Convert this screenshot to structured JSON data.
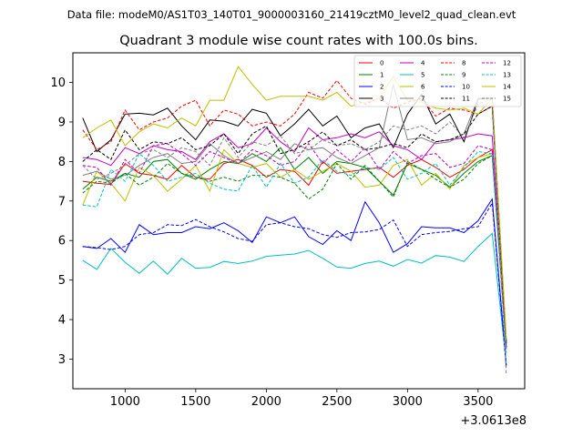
{
  "chart_data": {
    "type": "line",
    "header": "Data file: modeM0/AS1T03_140T01_9000003160_21419cztM0_level2_quad_clean.evt",
    "title": "Quadrant 3 module wise count rates with 100.0s bins.",
    "xlabel": "",
    "ylabel": "",
    "x_offset_label": "+3.0613e8",
    "xlim": [
      630,
      3830
    ],
    "ylim": [
      2.25,
      10.75
    ],
    "xticks": [
      1000,
      1500,
      2000,
      2500,
      3000,
      3500
    ],
    "yticks": [
      3,
      4,
      5,
      6,
      7,
      8,
      9,
      10
    ],
    "grid": false,
    "legend_placement": "top-right",
    "x": [
      700,
      800,
      900,
      1000,
      1100,
      1200,
      1300,
      1400,
      1500,
      1600,
      1700,
      1800,
      1900,
      2000,
      2100,
      2200,
      2300,
      2400,
      2500,
      2600,
      2700,
      2800,
      2900,
      3000,
      3100,
      3200,
      3300,
      3400,
      3500,
      3600,
      3700
    ],
    "series": [
      {
        "name": "0",
        "color": "#ff0000",
        "dash": false,
        "values": [
          7.5,
          7.45,
          7.42,
          7.95,
          7.7,
          7.65,
          7.55,
          7.9,
          7.6,
          7.55,
          7.95,
          8.05,
          7.9,
          7.6,
          7.8,
          7.75,
          7.4,
          8.0,
          7.7,
          7.75,
          7.8,
          7.85,
          7.6,
          7.9,
          8.05,
          7.85,
          7.6,
          7.8,
          8.1,
          8.3,
          3.3
        ]
      },
      {
        "name": "1",
        "color": "#008000",
        "dash": false,
        "values": [
          7.3,
          7.6,
          7.5,
          7.7,
          7.6,
          8.0,
          8.05,
          7.7,
          7.55,
          7.8,
          8.0,
          7.95,
          8.2,
          8.0,
          8.35,
          7.8,
          8.1,
          7.7,
          8.0,
          7.95,
          7.85,
          7.5,
          7.15,
          7.95,
          7.8,
          7.65,
          7.35,
          7.7,
          8.0,
          8.15,
          3.4
        ]
      },
      {
        "name": "2",
        "color": "#0000ff",
        "dash": false,
        "values": [
          5.85,
          5.8,
          6.05,
          5.7,
          6.4,
          6.15,
          6.2,
          6.2,
          6.35,
          6.3,
          6.45,
          6.25,
          5.95,
          6.6,
          6.45,
          6.6,
          6.1,
          5.9,
          6.25,
          6.0,
          6.98,
          6.45,
          5.7,
          5.92,
          6.35,
          6.32,
          6.32,
          6.2,
          6.5,
          7.05,
          2.85
        ]
      },
      {
        "name": "3",
        "color": "#000000",
        "dash": false,
        "values": [
          9.1,
          8.25,
          8.55,
          9.2,
          9.22,
          9.18,
          9.35,
          8.9,
          8.55,
          9.05,
          9.02,
          8.9,
          9.32,
          9.22,
          8.65,
          8.95,
          9.32,
          8.9,
          9.15,
          8.6,
          8.85,
          8.95,
          8.35,
          9.2,
          9.7,
          8.95,
          9.2,
          8.5,
          9.58,
          9.6,
          3.4
        ]
      },
      {
        "name": "4",
        "color": "#bf00bf",
        "dash": false,
        "values": [
          8.1,
          8.05,
          7.9,
          8.35,
          8.2,
          8.4,
          8.3,
          8.25,
          8.05,
          8.5,
          8.7,
          8.35,
          8.45,
          8.85,
          8.5,
          8.25,
          8.85,
          8.55,
          8.6,
          8.7,
          8.6,
          8.75,
          8.4,
          8.3,
          8.05,
          8.5,
          8.55,
          8.6,
          8.7,
          8.65,
          3.45
        ]
      },
      {
        "name": "5",
        "color": "#00bfbf",
        "dash": false,
        "values": [
          5.5,
          5.27,
          5.8,
          5.45,
          5.17,
          5.48,
          5.15,
          5.55,
          5.3,
          5.32,
          5.47,
          5.42,
          5.48,
          5.6,
          5.63,
          5.66,
          5.75,
          5.55,
          5.33,
          5.3,
          5.42,
          5.48,
          5.35,
          5.52,
          5.43,
          5.62,
          5.58,
          5.47,
          5.85,
          6.18,
          2.9
        ]
      },
      {
        "name": "6",
        "color": "#bfbf00",
        "dash": false,
        "values": [
          6.9,
          7.75,
          7.45,
          7.0,
          7.85,
          7.65,
          7.25,
          7.55,
          7.9,
          7.25,
          8.3,
          7.95,
          7.85,
          7.95,
          7.6,
          7.8,
          7.55,
          7.75,
          7.95,
          7.75,
          7.35,
          7.4,
          7.9,
          8.05,
          7.4,
          7.7,
          7.3,
          7.9,
          8.1,
          8.2,
          3.5
        ]
      },
      {
        "name": "7",
        "color": "#808080",
        "dash": false,
        "values": [
          7.65,
          7.75,
          7.55,
          7.65,
          7.9,
          8.1,
          8.2,
          7.95,
          8.0,
          8.45,
          8.15,
          7.95,
          8.1,
          8.25,
          8.05,
          8.45,
          8.3,
          8.35,
          8.1,
          7.95,
          8.15,
          8.35,
          9.95,
          8.55,
          8.6,
          8.45,
          8.5,
          8.7,
          9.6,
          9.6,
          3.5
        ]
      },
      {
        "name": "8",
        "color": "#ff0000",
        "dash": true,
        "values": [
          8.8,
          8.3,
          8.5,
          9.3,
          8.8,
          9.0,
          9.1,
          9.4,
          9.55,
          8.9,
          9.3,
          9.2,
          8.9,
          9.0,
          8.9,
          9.2,
          9.75,
          9.6,
          10.05,
          9.6,
          9.45,
          9.6,
          9.35,
          9.5,
          9.6,
          9.15,
          9.35,
          9.3,
          9.2,
          9.4,
          3.4
        ]
      },
      {
        "name": "9",
        "color": "#008000",
        "dash": true,
        "values": [
          7.2,
          7.5,
          7.45,
          7.7,
          7.4,
          7.6,
          7.95,
          7.7,
          7.6,
          7.5,
          7.6,
          7.5,
          7.65,
          7.65,
          7.6,
          7.45,
          7.05,
          7.3,
          7.95,
          7.55,
          7.9,
          7.5,
          7.1,
          8.0,
          7.8,
          7.55,
          7.35,
          7.55,
          7.95,
          8.15,
          3.3
        ]
      },
      {
        "name": "10",
        "color": "#0000ff",
        "dash": true,
        "values": [
          5.85,
          5.82,
          5.77,
          5.85,
          6.15,
          6.2,
          6.4,
          6.38,
          6.53,
          6.35,
          6.22,
          6.05,
          5.98,
          6.4,
          6.45,
          6.35,
          6.3,
          6.15,
          6.08,
          6.2,
          6.22,
          6.28,
          6.52,
          5.85,
          6.15,
          6.2,
          6.23,
          6.3,
          6.35,
          6.95,
          2.8
        ]
      },
      {
        "name": "11",
        "color": "#000000",
        "dash": true,
        "values": [
          8.0,
          8.3,
          8.05,
          8.8,
          8.3,
          8.5,
          8.45,
          8.6,
          8.3,
          8.4,
          8.7,
          8.2,
          8.7,
          8.9,
          8.2,
          8.3,
          8.5,
          8.75,
          8.4,
          8.55,
          8.3,
          8.35,
          8.45,
          8.35,
          8.7,
          8.5,
          8.55,
          8.7,
          9.2,
          9.4,
          3.3
        ]
      },
      {
        "name": "12",
        "color": "#bf00bf",
        "dash": true,
        "values": [
          7.9,
          7.85,
          7.4,
          8.05,
          7.7,
          8.4,
          8.45,
          8.2,
          7.9,
          8.25,
          8.1,
          7.95,
          8.3,
          8.15,
          7.9,
          8.0,
          8.45,
          7.95,
          8.3,
          8.0,
          8.35,
          7.8,
          8.25,
          7.95,
          8.15,
          8.2,
          7.85,
          7.95,
          8.4,
          8.3,
          3.25
        ]
      },
      {
        "name": "13",
        "color": "#00bfbf",
        "dash": true,
        "values": [
          6.9,
          6.85,
          7.8,
          7.5,
          8.2,
          7.9,
          7.5,
          7.6,
          7.7,
          7.45,
          7.3,
          7.25,
          7.9,
          7.35,
          7.95,
          7.45,
          7.6,
          8.05,
          7.75,
          7.65,
          7.85,
          7.8,
          8.1,
          7.55,
          7.7,
          7.95,
          7.4,
          7.85,
          8.25,
          8.2,
          3.1
        ]
      },
      {
        "name": "14",
        "color": "#bfbf00",
        "dash": false,
        "values": [
          8.6,
          8.85,
          9.05,
          8.4,
          8.75,
          8.95,
          8.85,
          9.1,
          8.9,
          9.55,
          9.55,
          10.4,
          9.95,
          9.55,
          9.65,
          9.65,
          9.65,
          9.55,
          9.75,
          9.4,
          9.5,
          9.6,
          10.15,
          9.55,
          9.5,
          9.35,
          9.3,
          9.35,
          9.2,
          9.6,
          3.5
        ]
      },
      {
        "name": "15",
        "color": "#808080",
        "dash": true,
        "values": [
          7.9,
          7.55,
          7.7,
          7.9,
          8.2,
          8.3,
          8.1,
          8.35,
          8.25,
          7.9,
          8.6,
          8.1,
          8.5,
          8.4,
          8.65,
          8.2,
          8.3,
          8.55,
          8.4,
          8.45,
          8.3,
          8.5,
          8.9,
          8.8,
          8.9,
          8.7,
          9.0,
          8.6,
          9.45,
          9.6,
          2.6
        ]
      }
    ]
  }
}
